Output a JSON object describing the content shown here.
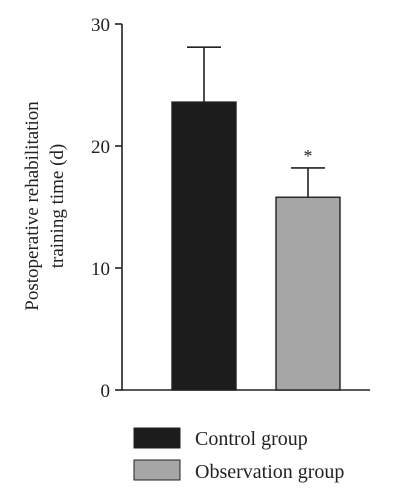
{
  "chart_data": {
    "type": "bar",
    "categories": [
      "Control group",
      "Observation group"
    ],
    "values": [
      23.6,
      15.8
    ],
    "errors": [
      4.5,
      2.4
    ],
    "significance": [
      "",
      "*"
    ],
    "ylabel_line1": "Postoperative rehabilitation",
    "ylabel_line2": "training time (d)",
    "ylim": [
      0,
      30
    ],
    "yticks": [
      "0",
      "10",
      "20",
      "30"
    ],
    "legend": [
      {
        "label": "Control group",
        "color": "#1c1c1c"
      },
      {
        "label": "Observation group",
        "color": "#a6a6a6"
      }
    ],
    "legend_position": "bottom",
    "grid": false
  }
}
